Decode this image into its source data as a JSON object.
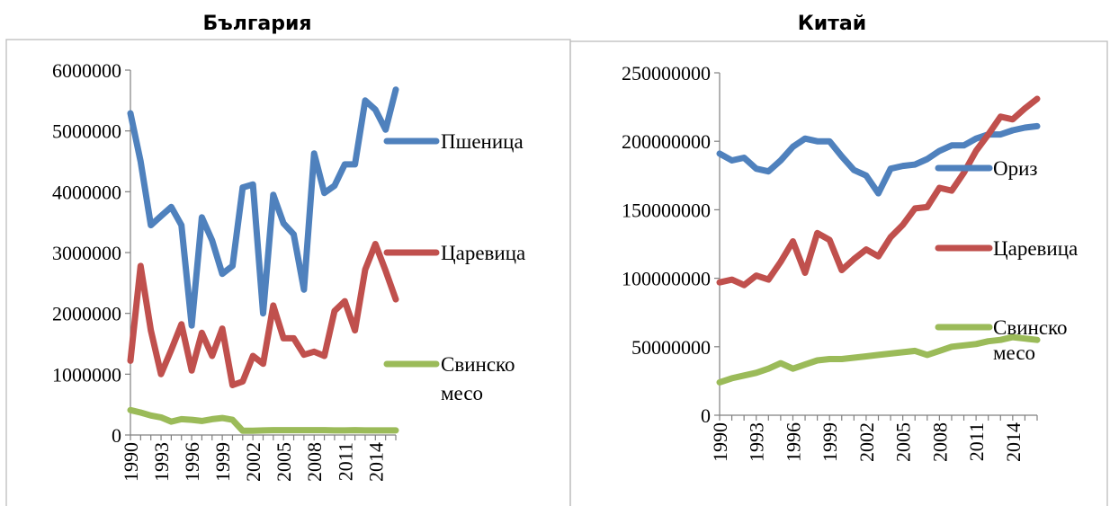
{
  "chart_data": [
    {
      "type": "line",
      "title": "България",
      "xlabel": "",
      "ylabel": "",
      "ylim": [
        0,
        6000000
      ],
      "y_ticks": [
        "0",
        "1000000",
        "2000000",
        "3000000",
        "4000000",
        "5000000",
        "6000000"
      ],
      "x_tick_labels": [
        "1990",
        "1993",
        "1996",
        "1999",
        "2002",
        "2005",
        "2008",
        "2011",
        "2014"
      ],
      "x": [
        1990,
        1991,
        1992,
        1993,
        1994,
        1995,
        1996,
        1997,
        1998,
        1999,
        2000,
        2001,
        2002,
        2003,
        2004,
        2005,
        2006,
        2007,
        2008,
        2009,
        2010,
        2011,
        2012,
        2013,
        2014,
        2015,
        2016
      ],
      "grid": false,
      "legend_position": "right",
      "series": [
        {
          "name": "Пшеница",
          "color": "#4f81bd",
          "values": [
            5290000,
            4500000,
            3450000,
            3600000,
            3750000,
            3450000,
            1800000,
            3580000,
            3200000,
            2650000,
            2780000,
            4070000,
            4120000,
            2000000,
            3950000,
            3480000,
            3300000,
            2390000,
            4630000,
            3980000,
            4100000,
            4450000,
            4450000,
            5500000,
            5350000,
            5020000,
            5680000
          ]
        },
        {
          "name": "Царевица",
          "color": "#c0504d",
          "values": [
            1220000,
            2780000,
            1720000,
            1000000,
            1400000,
            1820000,
            1060000,
            1680000,
            1300000,
            1750000,
            820000,
            880000,
            1300000,
            1170000,
            2130000,
            1590000,
            1590000,
            1320000,
            1370000,
            1300000,
            2040000,
            2200000,
            1720000,
            2720000,
            3140000,
            2700000,
            2230000
          ]
        },
        {
          "name": "Свинско месо",
          "color": "#9bbb59",
          "values": [
            410000,
            370000,
            320000,
            290000,
            220000,
            260000,
            250000,
            230000,
            260000,
            280000,
            250000,
            70000,
            70000,
            75000,
            80000,
            80000,
            80000,
            80000,
            80000,
            80000,
            75000,
            75000,
            80000,
            75000,
            75000,
            75000,
            75000
          ]
        }
      ]
    },
    {
      "type": "line",
      "title": "Китай",
      "xlabel": "",
      "ylabel": "",
      "ylim": [
        0,
        250000000
      ],
      "y_ticks": [
        "0",
        "50000000",
        "100000000",
        "150000000",
        "200000000",
        "250000000"
      ],
      "x_tick_labels": [
        "1990",
        "1993",
        "1996",
        "1999",
        "2002",
        "2005",
        "2008",
        "2011",
        "2014"
      ],
      "x": [
        1990,
        1991,
        1992,
        1993,
        1994,
        1995,
        1996,
        1997,
        1998,
        1999,
        2000,
        2001,
        2002,
        2003,
        2004,
        2005,
        2006,
        2007,
        2008,
        2009,
        2010,
        2011,
        2012,
        2013,
        2014,
        2015,
        2016
      ],
      "grid": false,
      "legend_position": "right",
      "series": [
        {
          "name": "Ориз",
          "color": "#4f81bd",
          "values": [
            191000000,
            186000000,
            188000000,
            180000000,
            178000000,
            186000000,
            196000000,
            202000000,
            200000000,
            200000000,
            189000000,
            179000000,
            175000000,
            162000000,
            180000000,
            182000000,
            183000000,
            187000000,
            193000000,
            197000000,
            197000000,
            202000000,
            205000000,
            205000000,
            208000000,
            210000000,
            211000000
          ]
        },
        {
          "name": "Царевица",
          "color": "#c0504d",
          "values": [
            97000000,
            99000000,
            95000000,
            102000000,
            99000000,
            112000000,
            127000000,
            104000000,
            133000000,
            128000000,
            106000000,
            114000000,
            121000000,
            116000000,
            130000000,
            139000000,
            151000000,
            152000000,
            166000000,
            164000000,
            177000000,
            193000000,
            205000000,
            218000000,
            216000000,
            224000000,
            231000000
          ]
        },
        {
          "name": "Свинско месо",
          "color": "#9bbb59",
          "values": [
            24000000,
            27000000,
            29000000,
            31000000,
            34000000,
            38000000,
            34000000,
            37000000,
            40000000,
            41000000,
            41000000,
            42000000,
            43000000,
            44000000,
            45000000,
            46000000,
            47000000,
            44000000,
            47000000,
            50000000,
            51000000,
            52000000,
            54000000,
            55000000,
            57000000,
            56000000,
            55000000
          ]
        }
      ]
    }
  ]
}
